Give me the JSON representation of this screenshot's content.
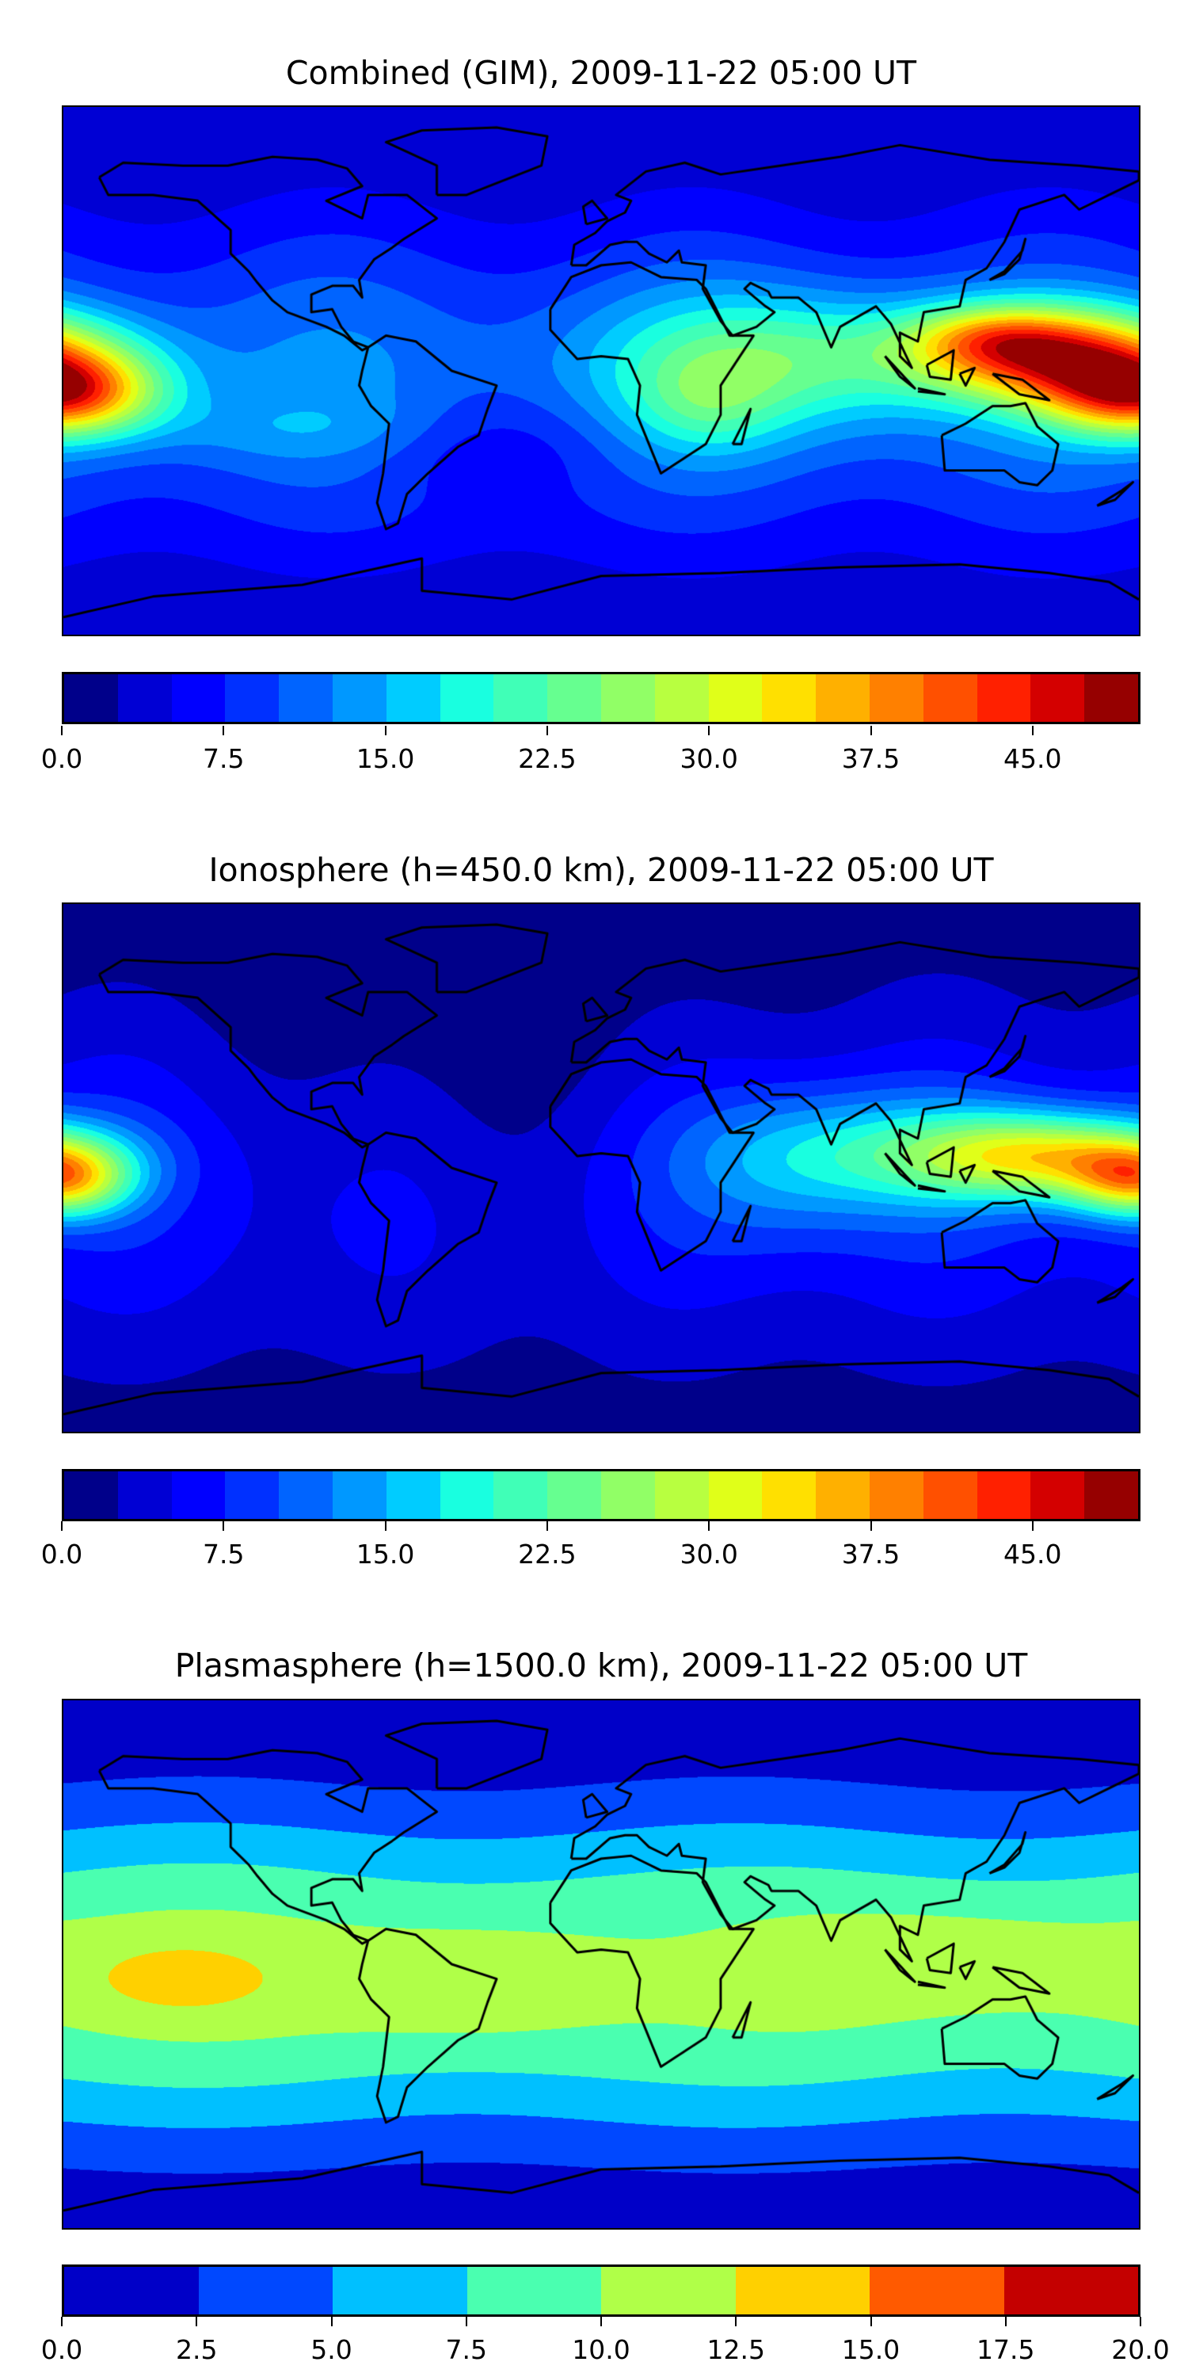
{
  "chart_data": [
    {
      "type": "heatmap",
      "title": "Combined (GIM), 2009-11-22 05:00 UT",
      "colorbar": {
        "range": [
          0,
          50
        ],
        "step": 2.5,
        "ticks": [
          "0.0",
          "7.5",
          "15.0",
          "22.5",
          "30.0",
          "37.5",
          "45.0"
        ],
        "tick_values": [
          0,
          7.5,
          15,
          22.5,
          30,
          37.5,
          45
        ],
        "colors": [
          "#00008a",
          "#0000d4",
          "#0000ff",
          "#0030ff",
          "#0064ff",
          "#0098ff",
          "#00ccff",
          "#19ffe0",
          "#40ffb7",
          "#66ff90",
          "#91ff66",
          "#b8ff40",
          "#e0ff19",
          "#ffe000",
          "#ffb000",
          "#ff8000",
          "#ff5000",
          "#ff2000",
          "#d40000",
          "#960000"
        ]
      }
    },
    {
      "type": "heatmap",
      "title": "Ionosphere  (h=450.0 km), 2009-11-22 05:00 UT",
      "colorbar": {
        "range": [
          0,
          50
        ],
        "step": 2.5,
        "ticks": [
          "0.0",
          "7.5",
          "15.0",
          "22.5",
          "30.0",
          "37.5",
          "45.0"
        ],
        "tick_values": [
          0,
          7.5,
          15,
          22.5,
          30,
          37.5,
          45
        ],
        "colors": [
          "#00008a",
          "#0000d4",
          "#0000ff",
          "#0030ff",
          "#0064ff",
          "#0098ff",
          "#00ccff",
          "#19ffe0",
          "#40ffb7",
          "#66ff90",
          "#91ff66",
          "#b8ff40",
          "#e0ff19",
          "#ffe000",
          "#ffb000",
          "#ff8000",
          "#ff5000",
          "#ff2000",
          "#d40000",
          "#960000"
        ]
      }
    },
    {
      "type": "heatmap",
      "title": "Plasmasphere (h=1500.0 km), 2009-11-22 05:00 UT",
      "colorbar": {
        "range": [
          0,
          20
        ],
        "step": 2.5,
        "ticks": [
          "0.0",
          "2.5",
          "5.0",
          "7.5",
          "10.0",
          "12.5",
          "15.0",
          "17.5",
          "20.0"
        ],
        "tick_values": [
          0,
          2.5,
          5,
          7.5,
          10,
          12.5,
          15,
          17.5,
          20
        ],
        "colors": [
          "#0000c8",
          "#0048ff",
          "#00c0ff",
          "#4affb0",
          "#b0ff48",
          "#ffd000",
          "#ff5a00",
          "#c40000"
        ]
      }
    }
  ]
}
